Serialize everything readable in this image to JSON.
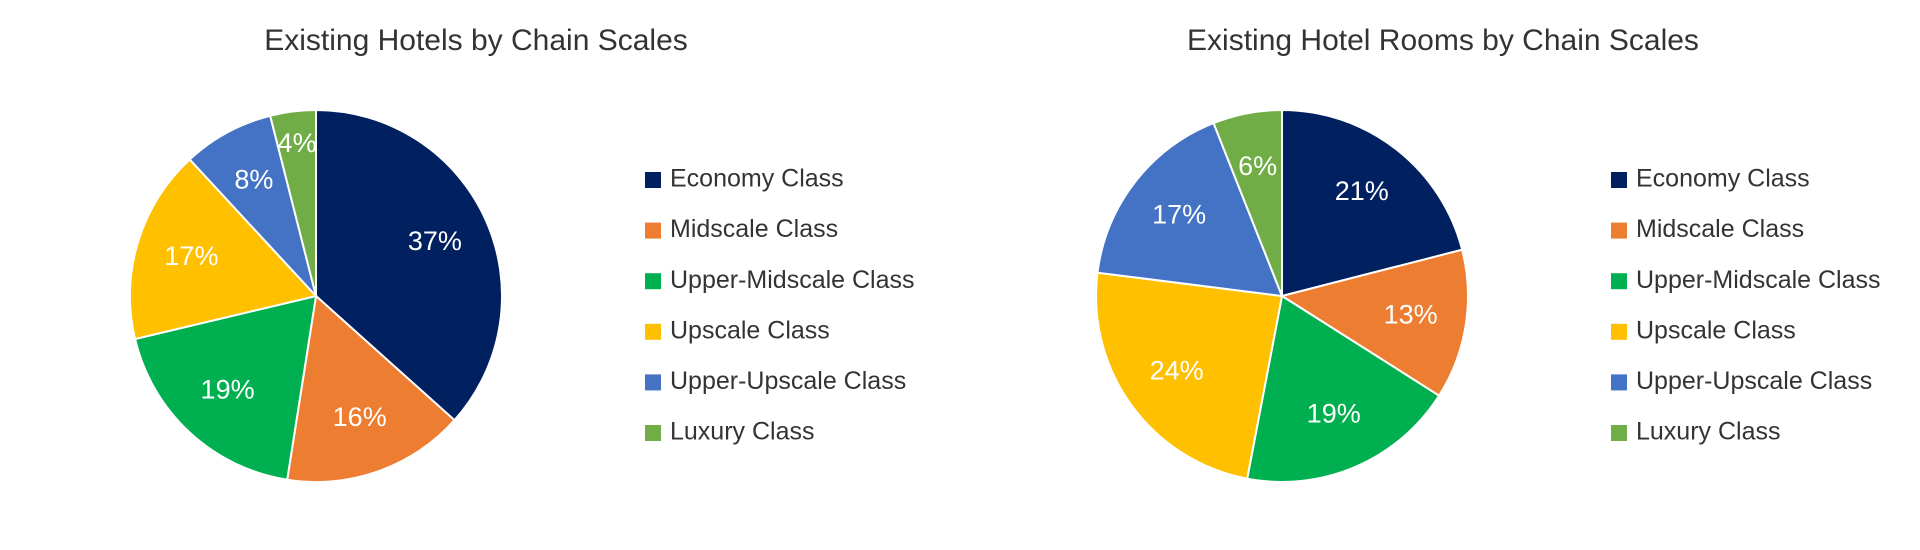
{
  "chart_data": [
    {
      "type": "pie",
      "title": "Existing Hotels by Chain Scales",
      "categories": [
        "Economy Class",
        "Midscale Class",
        "Upper-Midscale Class",
        "Upscale Class",
        "Upper-Upscale Class",
        "Luxury Class"
      ],
      "values": [
        37,
        16,
        19,
        17,
        8,
        4
      ],
      "value_labels": [
        "37%",
        "16%",
        "19%",
        "17%",
        "8%",
        "4%"
      ],
      "colors": [
        "#002060",
        "#ED7D31",
        "#00B050",
        "#FFC000",
        "#4472C4",
        "#70AD47"
      ]
    },
    {
      "type": "pie",
      "title": "Existing Hotel Rooms by Chain Scales",
      "categories": [
        "Economy Class",
        "Midscale Class",
        "Upper-Midscale Class",
        "Upscale Class",
        "Upper-Upscale Class",
        "Luxury Class"
      ],
      "values": [
        21,
        13,
        19,
        24,
        17,
        6
      ],
      "value_labels": [
        "21%",
        "13%",
        "19%",
        "24%",
        "17%",
        "6%"
      ],
      "colors": [
        "#002060",
        "#ED7D31",
        "#00B050",
        "#FFC000",
        "#4472C4",
        "#70AD47"
      ]
    }
  ]
}
